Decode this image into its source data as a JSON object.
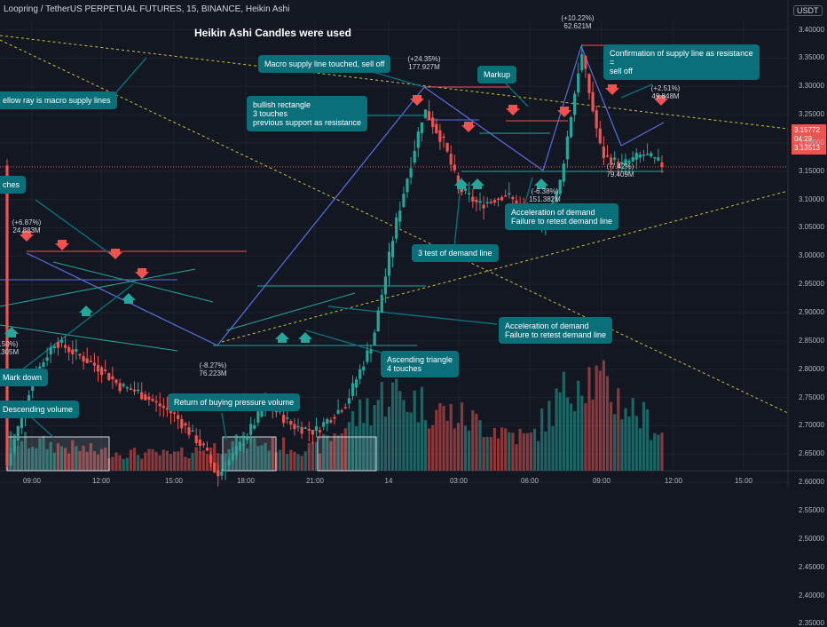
{
  "header": {
    "symbol_line": "Loopring / TetherUS PERPETUAL FUTURES, 15, BINANCE, Heikin Ashi",
    "currency": "USDT",
    "chart_title": "Heikin Ashi Candles were used"
  },
  "colors": {
    "up": "#26a69a",
    "down": "#ef5350",
    "pattern_line": "#5b6ee1",
    "trend_dash": "#c9c13a",
    "note_bg": "#0b6f7a"
  },
  "price_tag": {
    "price": "3.15772",
    "countdown": "04:29",
    "prev": "3.13513"
  },
  "pattern_labels": [
    {
      "pct": "(+6.87%)",
      "vol": "24.883M",
      "color": "up"
    },
    {
      "pct": "(-8.27%)",
      "vol": "76.223M",
      "color": "down"
    },
    {
      "pct": "(+24.35%)",
      "vol": "177.927M",
      "color": "up"
    },
    {
      "pct": "(-6.38%)",
      "vol": "151.382M",
      "color": "down"
    },
    {
      "pct": "(+10.22%)",
      "vol": "62.621M",
      "color": "up"
    },
    {
      "pct": "(+2.51%)",
      "vol": "49.848M",
      "color": "up"
    },
    {
      "pct": "(-7.42%)",
      "vol": "79.409M",
      "color": "down"
    },
    {
      "pct": ".50%)",
      "vol": ".305M",
      "color": "down"
    }
  ],
  "annotations": {
    "yellow_ray": "ellow ray is macro supply lines",
    "touches": "ches",
    "macro_supply": "Macro supply line touched, sell off",
    "bullish_rect_1": "bullish rectangle",
    "bullish_rect_2": "3 touches",
    "bullish_rect_3": "previous support as resistance",
    "markup": "Markup",
    "confirm_1": "Confirmation of supply line as resistance",
    "confirm_2": "=",
    "confirm_3": "sell off",
    "accel_top_1": "Acceleration of demand",
    "accel_top_2": "Failure to retest demand line",
    "test_demand": "3 test of demand line",
    "accel_mid_1": "Acceleration of demand",
    "accel_mid_2": "Failure to retest demand line",
    "asc_tri_1": "Ascending triangle",
    "asc_tri_2": "4 touches",
    "mark_down": "Mark down",
    "desc_volume": "Descending volume",
    "return_volume": "Return of buying pressure volume"
  },
  "chart_data": {
    "type": "candlestick",
    "chart_style": "Heikin Ashi",
    "interval": "15",
    "yaxis": {
      "ticks": [
        3.4,
        3.35,
        3.3,
        3.25,
        3.2,
        3.15,
        3.1,
        3.05,
        3.0,
        2.95,
        2.9,
        2.85,
        2.8,
        2.75,
        2.7,
        2.65,
        2.6,
        2.55,
        2.5,
        2.45,
        2.4,
        2.35
      ],
      "ylim": [
        2.34,
        3.42
      ]
    },
    "xaxis": {
      "ticks": [
        "09:00",
        "12:00",
        "15:00",
        "18:00",
        "21:00",
        "14",
        "03:00",
        "06:00",
        "09:00",
        "12:00",
        "15:00"
      ]
    },
    "price_path": [
      [
        "09:00",
        2.63
      ],
      [
        "10:00",
        2.78
      ],
      [
        "11:00",
        2.85
      ],
      [
        "12:00",
        2.8
      ],
      [
        "13:00",
        2.77
      ],
      [
        "14:00",
        2.76
      ],
      [
        "15:00",
        2.72
      ],
      [
        "16:00",
        2.66
      ],
      [
        "17:00",
        2.61
      ],
      [
        "18:00",
        2.68
      ],
      [
        "19:00",
        2.74
      ],
      [
        "20:00",
        2.7
      ],
      [
        "21:00",
        2.69
      ],
      [
        "22:00",
        2.74
      ],
      [
        "23:00",
        2.85
      ],
      [
        "00:00",
        3.05
      ],
      [
        "01:00",
        3.26
      ],
      [
        "02:00",
        3.2
      ],
      [
        "03:00",
        3.12
      ],
      [
        "04:00",
        3.09
      ],
      [
        "05:00",
        3.11
      ],
      [
        "06:00",
        3.05
      ],
      [
        "07:00",
        3.12
      ],
      [
        "08:00",
        3.36
      ],
      [
        "09:00",
        3.18
      ],
      [
        "10:00",
        3.16
      ],
      [
        "11:00",
        3.18
      ],
      [
        "11:45",
        3.16
      ]
    ],
    "volume_path": [
      [
        "09:00",
        0.3
      ],
      [
        "12:00",
        0.18
      ],
      [
        "15:00",
        0.15
      ],
      [
        "18:00",
        0.28
      ],
      [
        "21:00",
        0.2
      ],
      [
        "00:00",
        0.75
      ],
      [
        "02:00",
        0.55
      ],
      [
        "04:00",
        0.4
      ],
      [
        "06:00",
        0.3
      ],
      [
        "08:00",
        0.95
      ],
      [
        "11:45",
        0.35
      ]
    ],
    "last_price": 3.15772
  }
}
